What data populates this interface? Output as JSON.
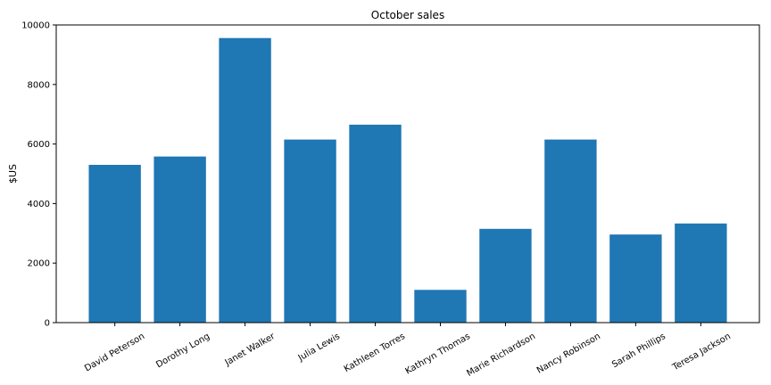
{
  "chart_data": {
    "type": "bar",
    "title": "October sales",
    "xlabel": "",
    "ylabel": "$US",
    "categories": [
      "David Peterson",
      "Dorothy Long",
      "Janet Walker",
      "Julia Lewis",
      "Kathleen Torres",
      "Kathryn Thomas",
      "Marie Richardson",
      "Nancy Robinson",
      "Sarah Phillips",
      "Teresa Jackson"
    ],
    "values": [
      5300,
      5580,
      9560,
      6150,
      6650,
      1100,
      3150,
      6150,
      2960,
      3330
    ],
    "ylim": [
      0,
      10000
    ],
    "yticks": [
      0,
      2000,
      4000,
      6000,
      8000,
      10000
    ],
    "bar_color": "#1f77b4",
    "grid": false,
    "legend": "none"
  }
}
